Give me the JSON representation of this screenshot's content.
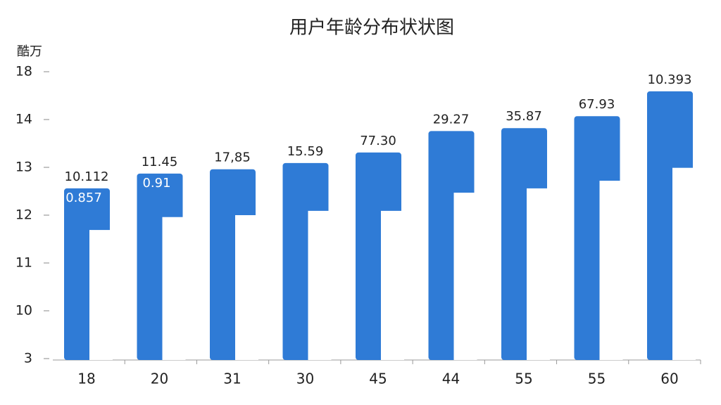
{
  "chart_data": {
    "type": "bar",
    "title": "用户年龄分布状状图",
    "y_label": "酷万",
    "categories": [
      "18",
      "20",
      "31",
      "30",
      "45",
      "44",
      "55",
      "55",
      "60"
    ],
    "series": [
      {
        "color": "#2f7bd6",
        "values": [
          3.56,
          3.87,
          3.96,
          4.09,
          4.31,
          4.76,
          4.82,
          5.07,
          5.59
        ]
      },
      {
        "color": "#ffffff",
        "values": [
          2.69,
          2.96,
          3.0,
          3.09,
          3.09,
          3.47,
          3.56,
          3.72,
          3.99
        ]
      }
    ],
    "bar_labels": [
      "10.112",
      "11.45",
      "17,85",
      "15.59",
      "77.30",
      "29.27",
      "35.87",
      "67.93",
      "10.393"
    ],
    "inner_labels": [
      "0.857",
      "0.91"
    ],
    "ylim": [
      0,
      6.2
    ],
    "yticks": [
      {
        "value": 0,
        "label": "3"
      },
      {
        "value": 1,
        "label": "10"
      },
      {
        "value": 2,
        "label": "11"
      },
      {
        "value": 3,
        "label": "12"
      },
      {
        "value": 4,
        "label": "13"
      },
      {
        "value": 5,
        "label": "14"
      },
      {
        "value": 6,
        "label": "18"
      }
    ],
    "grid": false
  }
}
